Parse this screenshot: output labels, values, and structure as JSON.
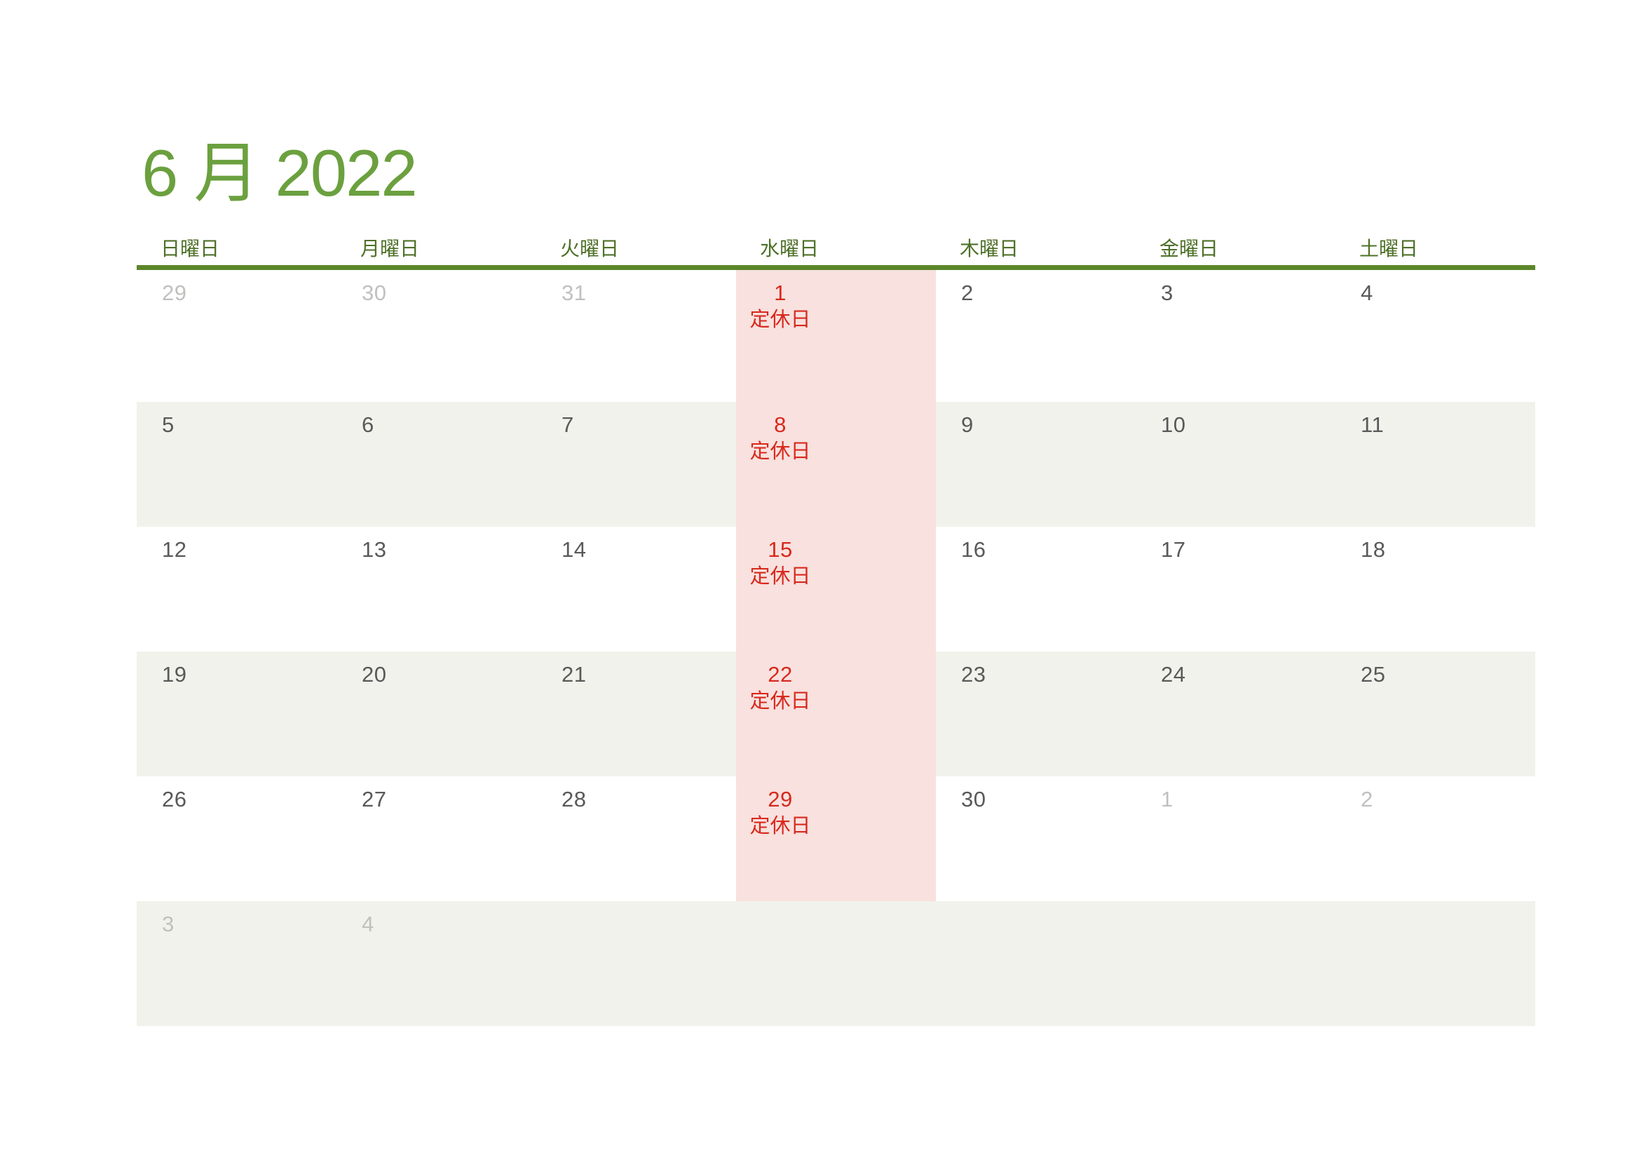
{
  "calendar": {
    "title": "6 月 2022",
    "weekdays": [
      "日曜日",
      "月曜日",
      "火曜日",
      "水曜日",
      "木曜日",
      "金曜日",
      "土曜日"
    ],
    "holiday_label": "定休日",
    "weeks": [
      {
        "days": [
          {
            "num": "29",
            "muted": true
          },
          {
            "num": "30",
            "muted": true
          },
          {
            "num": "31",
            "muted": true
          },
          {
            "num": "1",
            "holiday": true
          },
          {
            "num": "2"
          },
          {
            "num": "3"
          },
          {
            "num": "4"
          }
        ]
      },
      {
        "days": [
          {
            "num": "5"
          },
          {
            "num": "6"
          },
          {
            "num": "7"
          },
          {
            "num": "8",
            "holiday": true
          },
          {
            "num": "9"
          },
          {
            "num": "10"
          },
          {
            "num": "11"
          }
        ]
      },
      {
        "days": [
          {
            "num": "12"
          },
          {
            "num": "13"
          },
          {
            "num": "14"
          },
          {
            "num": "15",
            "holiday": true
          },
          {
            "num": "16"
          },
          {
            "num": "17"
          },
          {
            "num": "18"
          }
        ]
      },
      {
        "days": [
          {
            "num": "19"
          },
          {
            "num": "20"
          },
          {
            "num": "21"
          },
          {
            "num": "22",
            "holiday": true
          },
          {
            "num": "23"
          },
          {
            "num": "24"
          },
          {
            "num": "25"
          }
        ]
      },
      {
        "days": [
          {
            "num": "26"
          },
          {
            "num": "27"
          },
          {
            "num": "28"
          },
          {
            "num": "29",
            "holiday": true
          },
          {
            "num": "30"
          },
          {
            "num": "1",
            "muted": true
          },
          {
            "num": "2",
            "muted": true
          }
        ]
      },
      {
        "days": [
          {
            "num": "3",
            "muted": true
          },
          {
            "num": "4",
            "muted": true
          },
          {
            "num": ""
          },
          {
            "num": ""
          },
          {
            "num": ""
          },
          {
            "num": ""
          },
          {
            "num": ""
          }
        ]
      }
    ],
    "colors": {
      "title_green": "#6BA03F",
      "header_green": "#4E7028",
      "rule_green": "#5B8629",
      "holiday_red": "#D8291D",
      "wednesday_pink": "#F8E1DE",
      "alt_row": "#F2F2EC",
      "muted_gray": "#C1C0BE",
      "date_gray": "#595959"
    }
  }
}
